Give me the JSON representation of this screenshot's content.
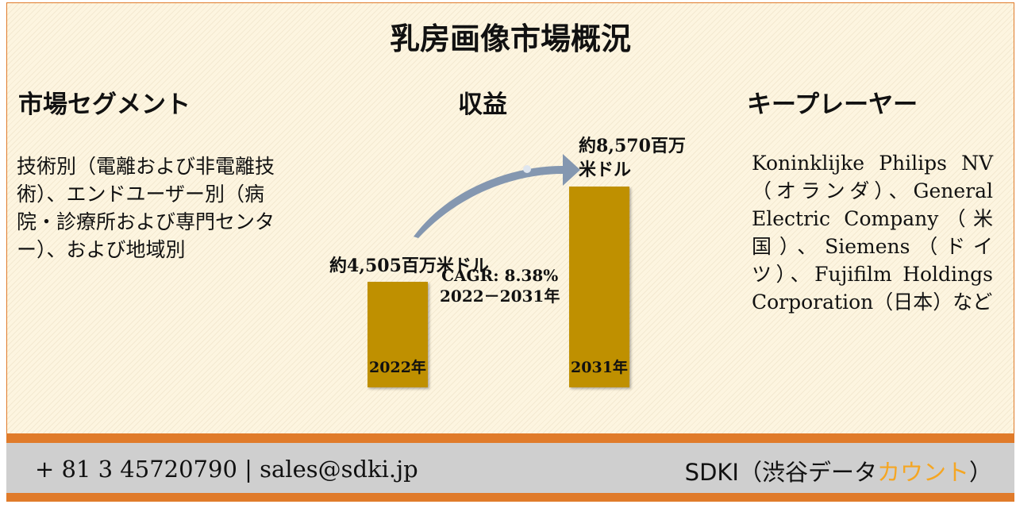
{
  "title": "乳房画像市場概況",
  "segments": {
    "heading": "市場セグメント",
    "text": "技術別（電離および非電離技術）、エンドユーザー別（病院・診療所および専門センター）、および地域別"
  },
  "chart_data": {
    "type": "bar",
    "heading": "収益",
    "categories": [
      "2022年",
      "2031年"
    ],
    "values": [
      4505,
      8570
    ],
    "value_labels": [
      "約4,505百万米ドル",
      "約8,570百万米ドル"
    ],
    "color": "#bf9000",
    "annotation": [
      "CAGR: 8.38%",
      "2022－2031年"
    ]
  },
  "players": {
    "heading": "キープレーヤー",
    "text": "Koninklijke Philips NV（オランダ）、General Electric Company（米国）、Siemens（ドイツ）、Fujifilm Holdings Corporation（日本）など"
  },
  "footer": {
    "contact": "+ 81 3 45720790 | sales@sdki.jp",
    "company": [
      "SDKI（渋谷データ",
      "カウント",
      "）"
    ]
  }
}
